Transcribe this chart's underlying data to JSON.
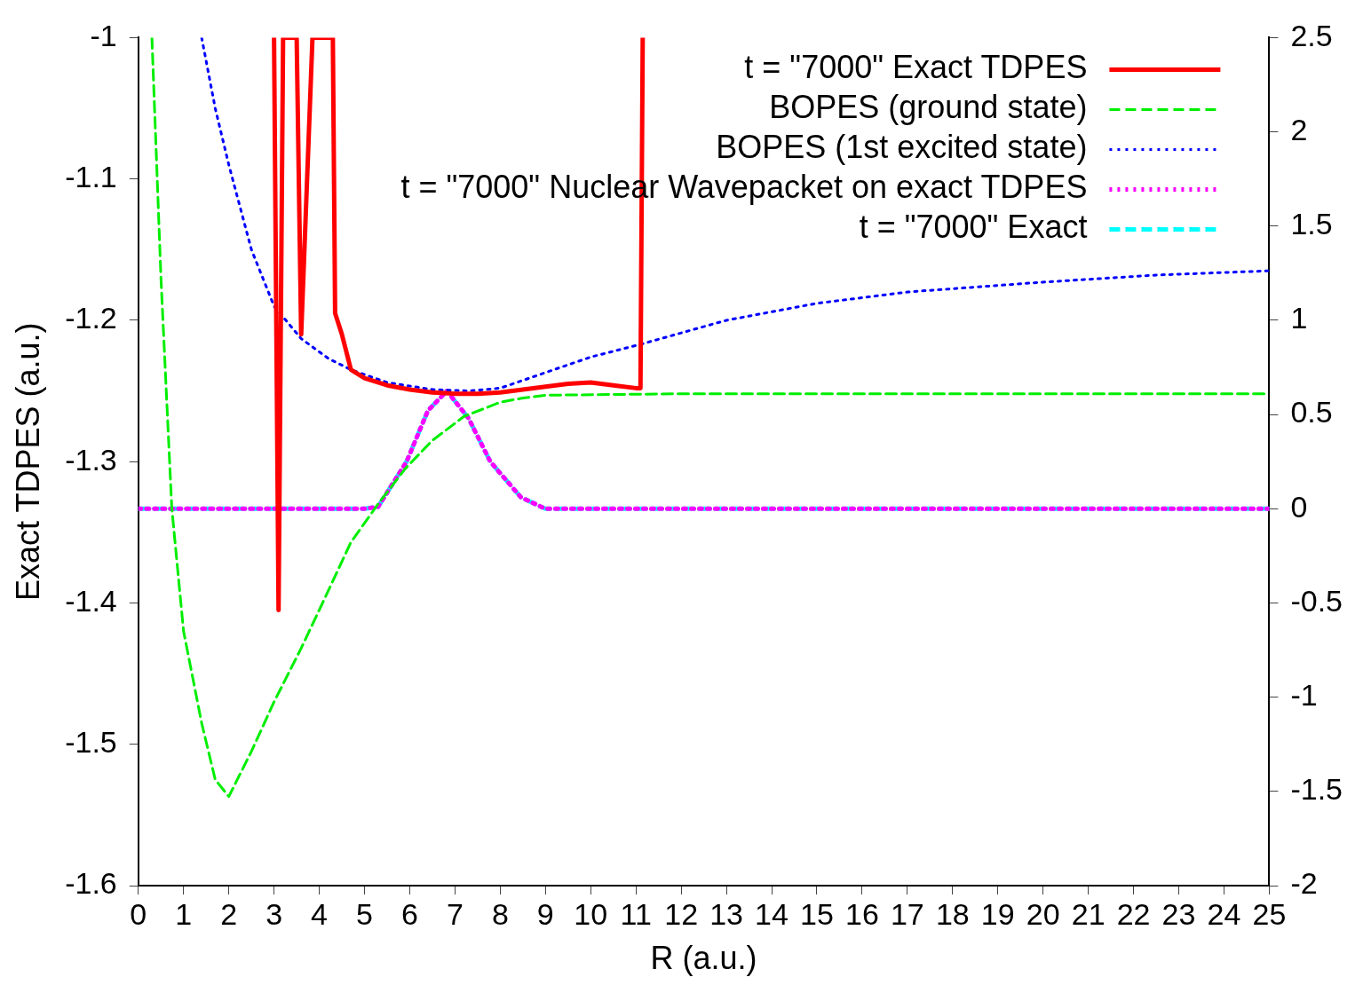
{
  "chart_data": {
    "type": "line",
    "xlabel": "R (a.u.)",
    "ylabel": "Exact TDPES (a.u.)",
    "xlim": [
      0,
      25
    ],
    "xticks": [
      0,
      1,
      2,
      3,
      4,
      5,
      6,
      7,
      8,
      9,
      10,
      11,
      12,
      13,
      14,
      15,
      16,
      17,
      18,
      19,
      20,
      21,
      22,
      23,
      24,
      25
    ],
    "ylim": [
      -1.6,
      -1
    ],
    "yticks": [
      -1.6,
      -1.5,
      -1.4,
      -1.3,
      -1.2,
      -1.1,
      -1
    ],
    "y2lim": [
      -2,
      2.5
    ],
    "y2ticks": [
      -2,
      -1.5,
      -1,
      -0.5,
      0,
      0.5,
      1,
      1.5,
      2,
      2.5
    ],
    "grid": false,
    "legend": "top right",
    "marker": "none",
    "series": [
      {
        "name": "t = \"7000\" Exact TDPES",
        "color": "#ff0000",
        "line_style": "solid",
        "x": [
          3.0,
          3.1,
          3.2,
          3.5,
          3.6,
          3.85,
          4.3,
          4.35,
          4.5,
          4.7,
          5,
          5.5,
          6,
          6.5,
          7,
          7.5,
          8,
          8.5,
          9,
          9.5,
          10,
          10.5,
          11,
          11.1,
          11.15
        ],
        "values": [
          -1,
          -1.405,
          -1,
          -1,
          -1.21,
          -1,
          -1,
          -1.195,
          -1.21,
          -1.235,
          -1.241,
          -1.246,
          -1.249,
          -1.251,
          -1.252,
          -1.252,
          -1.251,
          -1.249,
          -1.247,
          -1.245,
          -1.244,
          -1.246,
          -1.248,
          -1.248,
          -1
        ]
      },
      {
        "name": "BOPES (ground state)",
        "color": "#00ee00",
        "line_style": "dashed",
        "x": [
          0.3,
          0.5,
          0.74,
          1,
          1.4,
          1.7,
          2,
          2.5,
          3,
          3.6,
          4,
          4.7,
          5.3,
          5.9,
          6.5,
          7.2,
          8,
          8.5,
          9,
          12,
          15,
          20,
          25
        ],
        "values": [
          -1,
          -1.17,
          -1.333,
          -1.42,
          -1.485,
          -1.525,
          -1.537,
          -1.505,
          -1.47,
          -1.432,
          -1.405,
          -1.357,
          -1.33,
          -1.305,
          -1.285,
          -1.268,
          -1.258,
          -1.255,
          -1.253,
          -1.252,
          -1.252,
          -1.252,
          -1.252
        ]
      },
      {
        "name": "BOPES (1st excited state)",
        "color": "#0000ff",
        "line_style": "dotted",
        "x": [
          1.4,
          1.7,
          2,
          2.5,
          3,
          3.6,
          4.2,
          4.7,
          5.5,
          6.5,
          7.3,
          8,
          9,
          10,
          11.1,
          13,
          15,
          17,
          20,
          22.5,
          25
        ],
        "values": [
          -1,
          -1.05,
          -1.09,
          -1.15,
          -1.19,
          -1.213,
          -1.227,
          -1.235,
          -1.244,
          -1.249,
          -1.25,
          -1.248,
          -1.237,
          -1.226,
          -1.217,
          -1.2,
          -1.188,
          -1.18,
          -1.173,
          -1.168,
          -1.165
        ]
      },
      {
        "name": "t = \"7000\" Nuclear Wavepacket on exact TDPES",
        "color": "#ff00ff",
        "line_style": "dotted",
        "axis": "y2",
        "x": [
          0,
          5,
          5.3,
          5.93,
          6.4,
          6.82,
          7.3,
          7.78,
          8.46,
          9,
          25
        ],
        "values": [
          0,
          0,
          0.01,
          0.25,
          0.52,
          0.625,
          0.48,
          0.25,
          0.06,
          0,
          0
        ]
      },
      {
        "name": "t = \"7000\" Exact",
        "color": "#00ffff",
        "line_style": "dashed",
        "axis": "y2",
        "x": [
          0,
          5,
          5.3,
          5.93,
          6.4,
          6.82,
          7.3,
          7.78,
          8.46,
          9,
          25
        ],
        "values": [
          0,
          0,
          0.01,
          0.25,
          0.52,
          0.625,
          0.48,
          0.25,
          0.06,
          0,
          0
        ]
      }
    ]
  }
}
